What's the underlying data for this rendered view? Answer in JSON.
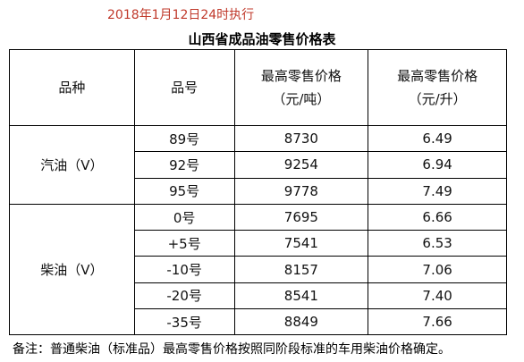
{
  "header": {
    "date_note": "2018年1月12日24时执行",
    "title": "山西省成品油零售价格表"
  },
  "table": {
    "columns": [
      [
        "品种"
      ],
      [
        "品号"
      ],
      [
        "最高零售价格",
        "（元/吨）"
      ],
      [
        "最高零售价格",
        "（元/升）"
      ]
    ],
    "groups": [
      {
        "name": "汽油（Ⅴ）",
        "rows": [
          [
            "89号",
            "8730",
            "6.49"
          ],
          [
            "92号",
            "9254",
            "6.94"
          ],
          [
            "95号",
            "9778",
            "7.49"
          ]
        ]
      },
      {
        "name": "柴油（Ⅴ）",
        "rows": [
          [
            "0号",
            "7695",
            "6.66"
          ],
          [
            "+5号",
            "7541",
            "6.53"
          ],
          [
            "-10号",
            "8157",
            "7.06"
          ],
          [
            "-20号",
            "8541",
            "7.40"
          ],
          [
            "-35号",
            "8849",
            "7.66"
          ]
        ]
      }
    ]
  },
  "footnote": "备注：普通柴油（标准品）最高零售价格按照同阶段标准的车用柴油价格确定。"
}
